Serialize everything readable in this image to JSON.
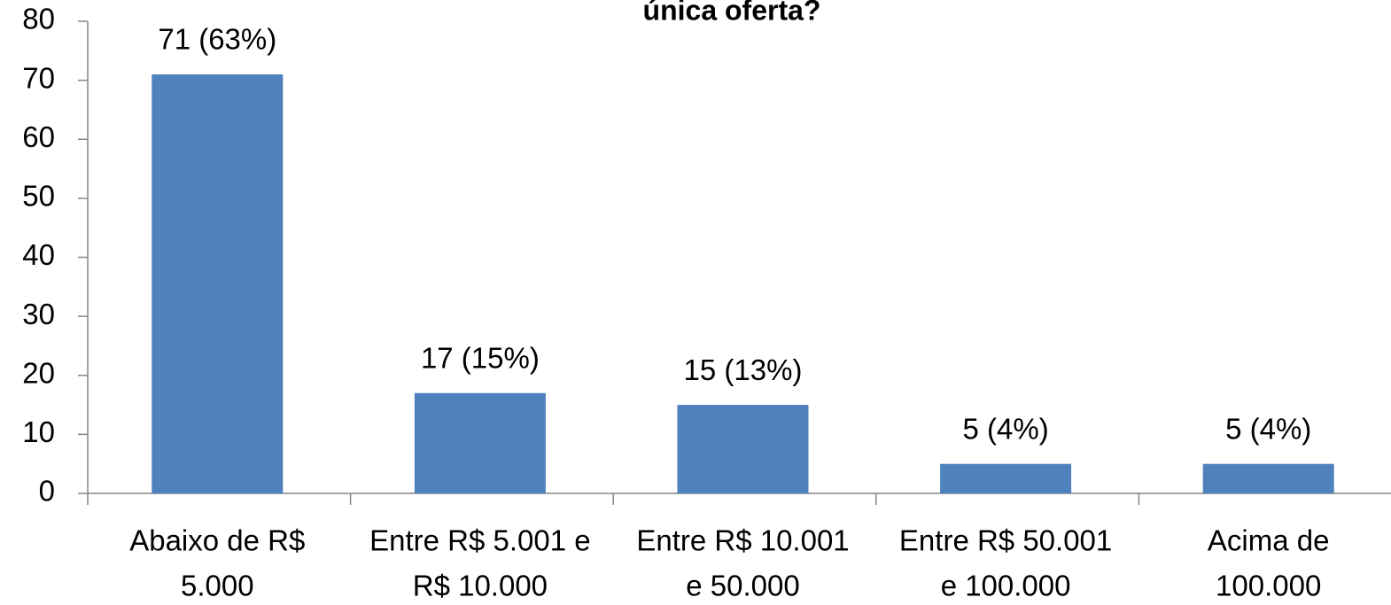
{
  "chart_data": {
    "type": "bar",
    "title": "única oferta?",
    "categories": [
      [
        "Abaixo de R$",
        "5.000"
      ],
      [
        "Entre R$ 5.001 e",
        "R$ 10.000"
      ],
      [
        "Entre R$ 10.001",
        "e 50.000"
      ],
      [
        "Entre R$ 50.001",
        "e 100.000"
      ],
      [
        "Acima de",
        "100.000"
      ]
    ],
    "values": [
      71,
      17,
      15,
      5,
      5
    ],
    "value_labels": [
      "71 (63%)",
      "17 (15%)",
      "15 (13%)",
      "5 (4%)",
      "5 (4%)"
    ],
    "color": "#4f81bd",
    "ylim": [
      0,
      80
    ],
    "yticks": [
      0,
      10,
      20,
      30,
      40,
      50,
      60,
      70,
      80
    ],
    "grid": false
  }
}
